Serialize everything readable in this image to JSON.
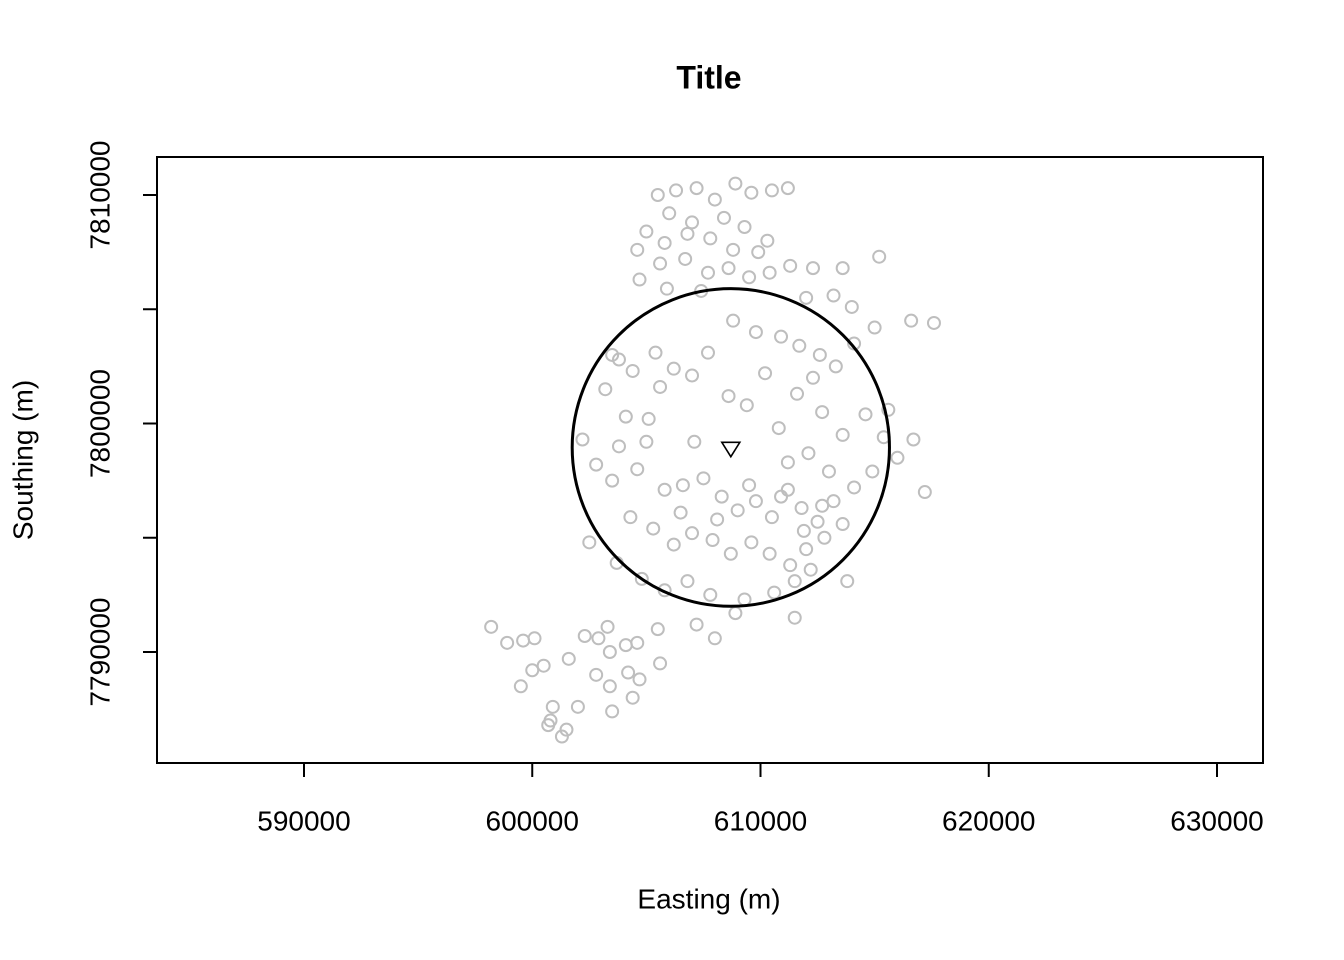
{
  "chart_data": {
    "type": "scatter",
    "title": "Title",
    "xlabel": "Easting (m)",
    "ylabel": "Southing (m)",
    "color": "#bebebe",
    "x": [
      605500,
      606300,
      607200,
      608000,
      608900,
      609600,
      610500,
      611200,
      606000,
      607000,
      608400,
      609300,
      610300,
      605000,
      605800,
      606800,
      607800,
      608800,
      609900,
      604600,
      605600,
      606700,
      607700,
      608600,
      609500,
      610400,
      611300,
      612300,
      613600,
      615200,
      604700,
      605900,
      607400,
      612000,
      613200,
      614000,
      603500,
      604400,
      605400,
      606200,
      607000,
      607700,
      608800,
      609800,
      610900,
      611700,
      612600,
      613300,
      614100,
      615000,
      616600,
      617600,
      603200,
      604100,
      605100,
      605000,
      603800,
      602200,
      602800,
      603500,
      604600,
      605800,
      606600,
      607500,
      608300,
      609000,
      609800,
      610500,
      611200,
      611800,
      612500,
      613200,
      614100,
      614900,
      615400,
      615600,
      614600,
      613600,
      612700,
      611600,
      610800,
      609400,
      608600,
      607100,
      611200,
      612100,
      613000,
      616000,
      616700,
      617200,
      604300,
      605300,
      606200,
      607000,
      607900,
      608700,
      609600,
      610400,
      611300,
      612000,
      612800,
      613600,
      602500,
      603700,
      604800,
      605800,
      606800,
      607800,
      609300,
      610600,
      611500,
      612200,
      613800,
      607200,
      608000,
      608900,
      611500,
      603800,
      605600,
      610200,
      612300,
      606500,
      608100,
      609500,
      610900,
      611900,
      612700,
      598200,
      598900,
      599600,
      600100,
      599500,
      600000,
      600500,
      601600,
      602300,
      602900,
      603300,
      603400,
      604100,
      604600,
      605500,
      602800,
      603400,
      604200,
      604700,
      605600,
      603500,
      604400,
      602000,
      600900,
      600800,
      601300,
      601500,
      600700
    ],
    "y": [
      7810000,
      7810200,
      7810300,
      7809800,
      7810500,
      7810100,
      7810200,
      7810300,
      7809200,
      7808800,
      7809000,
      7808600,
      7808000,
      7808400,
      7807900,
      7808300,
      7808100,
      7807600,
      7807500,
      7807600,
      7807000,
      7807200,
      7806600,
      7806800,
      7806400,
      7806600,
      7806900,
      7806800,
      7806800,
      7807300,
      7806300,
      7805900,
      7805800,
      7805500,
      7805600,
      7805100,
      7803000,
      7802300,
      7803100,
      7802400,
      7802100,
      7803100,
      7804500,
      7804000,
      7803800,
      7803400,
      7803000,
      7802500,
      7803500,
      7804200,
      7804500,
      7804400,
      7801500,
      7800300,
      7800200,
      7799200,
      7799000,
      7799300,
      7798200,
      7797500,
      7798000,
      7797100,
      7797300,
      7797600,
      7796800,
      7796200,
      7796600,
      7795900,
      7797100,
      7796300,
      7795700,
      7796600,
      7797200,
      7797900,
      7799400,
      7800600,
      7800400,
      7799500,
      7800500,
      7801300,
      7799800,
      7800800,
      7801200,
      7799200,
      7798300,
      7798700,
      7797900,
      7798500,
      7799300,
      7797000,
      7795900,
      7795400,
      7794700,
      7795200,
      7794900,
      7794300,
      7794800,
      7794300,
      7793800,
      7794500,
      7795000,
      7795600,
      7794800,
      7793900,
      7793200,
      7792700,
      7793100,
      7792500,
      7792300,
      7792600,
      7793100,
      7793600,
      7793100,
      7791200,
      7790600,
      7791700,
      7791500,
      7802800,
      7801600,
      7802200,
      7802000,
      7796100,
      7795800,
      7797300,
      7796800,
      7795300,
      7796400,
      7791100,
      7790400,
      7790500,
      7790600,
      7788500,
      7789200,
      7789400,
      7789700,
      7790700,
      7790600,
      7791100,
      7790000,
      7790300,
      7790400,
      7791000,
      7789000,
      7788500,
      7789100,
      7788800,
      7789500,
      7787400,
      7788000,
      7787600,
      7787600,
      7787000,
      7786300,
      7786600,
      7786800
    ],
    "circle": {
      "x": 608700,
      "y": 7798950,
      "radius": 6950,
      "color": "#000000"
    },
    "marker": {
      "x": 608700,
      "y": 7798900,
      "color": "#000000"
    },
    "xlim": [
      583560,
      632015
    ],
    "ylim": [
      7785142,
      7811663
    ],
    "xticks": [
      590000,
      600000,
      610000,
      620000,
      630000
    ],
    "yticks": [
      7790000,
      7800000,
      7810000
    ],
    "yminor_ticks": [
      7795000,
      7805000
    ]
  }
}
